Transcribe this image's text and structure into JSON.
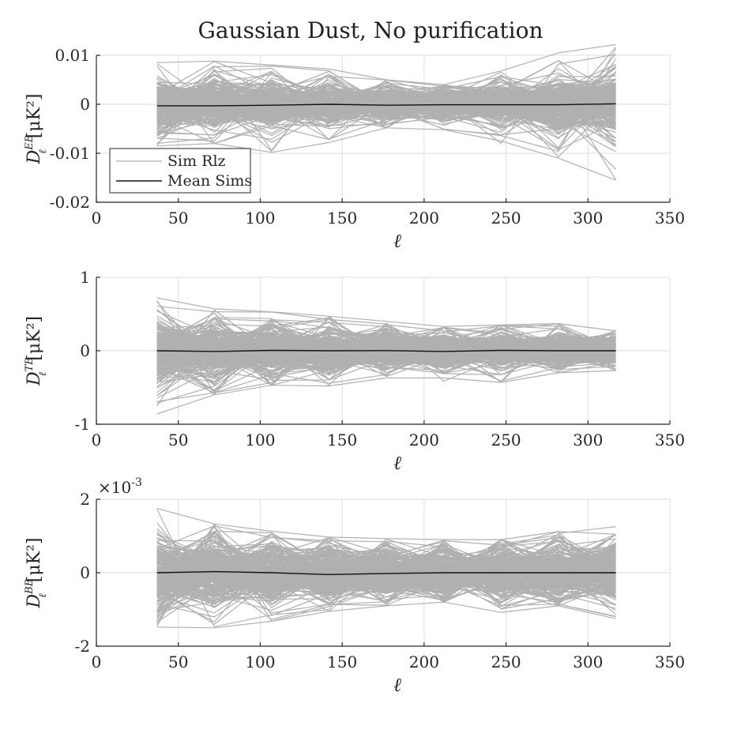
{
  "title": "Gaussian Dust, No purification",
  "chart_data": [
    {
      "type": "line",
      "id": "EB",
      "ylabel_main": "D",
      "ylabel_sub": "ℓ",
      "ylabel_sup": "EB",
      "ylabel_unit": "[μK²]",
      "xlabel": "ℓ",
      "xlim": [
        0,
        350
      ],
      "ylim": [
        -0.02,
        0.01
      ],
      "xticks": [
        0,
        50,
        100,
        150,
        200,
        250,
        300,
        350
      ],
      "yticks": [
        -0.02,
        -0.01,
        0,
        0.01
      ],
      "ytick_labels": [
        "-0.02",
        "-0.01",
        "0",
        "0.01"
      ],
      "exponent_label": "",
      "x": [
        37,
        72,
        107,
        142,
        177,
        212,
        247,
        282,
        317
      ],
      "series": [
        {
          "name": "Mean Sims",
          "values": [
            -0.0003,
            -0.0003,
            -0.0002,
            0.0,
            -0.0002,
            -0.0001,
            -0.0001,
            -0.0001,
            0.0001
          ]
        }
      ],
      "sim_envelope": {
        "typical": [
          0.0045,
          0.0045,
          0.0045,
          0.004,
          0.0032,
          0.0028,
          0.004,
          0.005,
          0.006
        ],
        "extreme_hi": [
          0.0085,
          0.0088,
          0.008,
          0.0072,
          0.005,
          0.004,
          0.0068,
          0.0105,
          0.0122
        ],
        "extreme_lo": [
          -0.0085,
          -0.008,
          -0.0098,
          -0.0078,
          -0.0048,
          -0.0052,
          -0.0075,
          -0.011,
          -0.0155
        ]
      },
      "legend": {
        "position": "bottom-left",
        "entries": [
          "Sim Rlz",
          "Mean Sims"
        ]
      },
      "grid": true
    },
    {
      "type": "line",
      "id": "TB",
      "ylabel_main": "D",
      "ylabel_sub": "ℓ",
      "ylabel_sup": "TB",
      "ylabel_unit": "[μK²]",
      "xlabel": "ℓ",
      "xlim": [
        0,
        350
      ],
      "ylim": [
        -1,
        1
      ],
      "xticks": [
        0,
        50,
        100,
        150,
        200,
        250,
        300,
        350
      ],
      "yticks": [
        -1,
        0,
        1
      ],
      "ytick_labels": [
        "-1",
        "0",
        "1"
      ],
      "exponent_label": "",
      "x": [
        37,
        72,
        107,
        142,
        177,
        212,
        247,
        282,
        317
      ],
      "series": [
        {
          "name": "Mean Sims",
          "values": [
            0.0,
            -0.01,
            0.005,
            0.0,
            0.002,
            -0.01,
            0.005,
            0.0,
            0.0
          ]
        }
      ],
      "sim_envelope": {
        "typical": [
          0.42,
          0.33,
          0.3,
          0.28,
          0.25,
          0.23,
          0.22,
          0.2,
          0.18
        ],
        "extreme_hi": [
          0.72,
          0.57,
          0.53,
          0.47,
          0.4,
          0.33,
          0.35,
          0.37,
          0.27
        ],
        "extreme_lo": [
          -0.86,
          -0.6,
          -0.47,
          -0.48,
          -0.37,
          -0.37,
          -0.43,
          -0.3,
          -0.27
        ]
      },
      "legend": null,
      "grid": true
    },
    {
      "type": "line",
      "id": "BB",
      "ylabel_main": "D",
      "ylabel_sub": "ℓ",
      "ylabel_sup": "BB",
      "ylabel_unit": "[μK²]",
      "xlabel": "ℓ",
      "xlim": [
        0,
        350
      ],
      "ylim": [
        -2,
        2
      ],
      "xticks": [
        0,
        50,
        100,
        150,
        200,
        250,
        300,
        350
      ],
      "yticks": [
        -2,
        0,
        2
      ],
      "ytick_labels": [
        "-2",
        "0",
        "2"
      ],
      "exponent_label": "×10",
      "exponent_power": "-3",
      "x": [
        37,
        72,
        107,
        142,
        177,
        212,
        247,
        282,
        317
      ],
      "series": [
        {
          "name": "Mean Sims",
          "values": [
            0.0,
            0.03,
            0.0,
            -0.05,
            -0.02,
            0.0,
            0.0,
            0.0,
            0.0
          ]
        }
      ],
      "sim_envelope": {
        "typical": [
          0.9,
          0.85,
          0.75,
          0.7,
          0.6,
          0.6,
          0.65,
          0.7,
          0.75
        ],
        "extreme_hi": [
          1.75,
          1.33,
          1.13,
          0.97,
          0.93,
          0.9,
          0.9,
          1.12,
          1.05
        ],
        "extreme_lo": [
          -1.48,
          -1.5,
          -1.32,
          -1.05,
          -0.9,
          -0.8,
          -1.08,
          -0.9,
          -1.25
        ]
      },
      "legend": null,
      "grid": true
    }
  ],
  "colors": {
    "sims": "#b0b0b0",
    "mean": "#111111",
    "grid": "#dedede",
    "axis": "#262626"
  }
}
